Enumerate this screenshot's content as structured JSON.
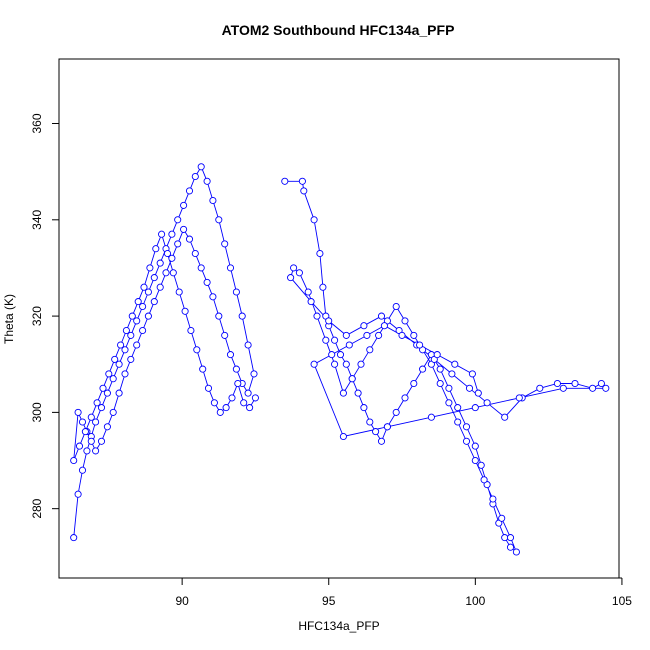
{
  "chart_data": {
    "type": "line",
    "title": "ATOM2 Southbound HFC134a_PFP",
    "xlabel": "HFC134a_PFP",
    "ylabel": "Theta (K)",
    "xlim": [
      85.8,
      104.9
    ],
    "ylim": [
      265.6,
      373.4
    ],
    "x_ticks": [
      90,
      95,
      100,
      105
    ],
    "y_ticks": [
      280,
      300,
      320,
      340,
      360
    ],
    "grid": false,
    "markers": "open-circle",
    "line_color": "#0000ff",
    "series": [
      {
        "x": [
          86.3,
          86.45,
          86.6,
          86.75,
          86.9,
          87.05,
          87.25,
          87.45,
          87.65,
          87.85,
          88.05,
          88.25,
          88.45,
          88.65,
          88.85,
          89.05,
          89.25,
          89.45,
          89.65,
          89.85,
          90.05,
          90.25,
          90.45,
          90.65,
          90.85,
          91.05,
          91.25,
          91.45,
          91.65,
          91.85,
          92.05,
          92.25,
          92.45,
          92.25,
          92.05,
          91.85,
          91.65,
          91.45,
          91.25,
          91.05,
          90.85,
          90.65,
          90.45,
          90.25,
          90.05,
          89.85,
          89.65,
          89.45,
          89.25,
          89.05,
          88.85,
          88.65,
          88.45,
          88.25,
          88.05,
          87.85,
          87.65,
          87.45,
          87.25,
          87.05,
          86.9,
          86.75,
          86.6,
          86.45,
          86.3,
          86.5,
          86.7,
          86.9,
          87.1,
          87.3,
          87.5,
          87.7,
          87.9,
          88.1,
          88.3,
          88.5,
          88.7,
          88.9,
          89.1,
          89.3,
          89.5,
          89.7,
          89.9,
          90.1,
          90.3,
          90.5,
          90.7,
          90.9,
          91.1,
          91.3,
          91.5,
          91.7,
          91.9,
          92.1,
          92.3,
          92.5
        ],
        "y": [
          274,
          283,
          288,
          292,
          295,
          298,
          301,
          304,
          307,
          310,
          313,
          316,
          319,
          322,
          325,
          328,
          331,
          334,
          337,
          340,
          343,
          346,
          349,
          351,
          348,
          344,
          340,
          335,
          330,
          325,
          320,
          314,
          308,
          304,
          306,
          309,
          312,
          316,
          320,
          324,
          327,
          330,
          333,
          336,
          338,
          335,
          332,
          329,
          326,
          323,
          320,
          317,
          314,
          311,
          308,
          304,
          300,
          297,
          294,
          292,
          294,
          296,
          298,
          300,
          290,
          293,
          296,
          299,
          302,
          305,
          308,
          311,
          314,
          317,
          320,
          323,
          326,
          330,
          334,
          337,
          333,
          329,
          325,
          321,
          317,
          313,
          309,
          305,
          302,
          300,
          301,
          303,
          306,
          302,
          301,
          303
        ]
      },
      {
        "x": [
          93.5,
          94.1,
          94.15,
          94.5,
          94.7,
          94.8,
          94.9,
          95.0,
          95.2,
          95.4,
          95.6,
          95.8,
          96.0,
          96.2,
          96.4,
          96.6,
          96.8,
          97.0,
          97.3,
          97.6,
          97.9,
          98.2,
          98.5,
          98.8,
          99.1,
          99.4,
          99.7,
          100.0,
          100.2,
          100.4,
          100.6,
          100.8,
          101.0,
          101.2,
          101.4,
          101.2,
          100.9,
          100.6,
          100.3,
          100.0,
          99.7,
          99.4,
          99.1,
          98.8,
          98.5,
          98.2,
          97.9,
          97.6,
          97.3,
          97.0,
          96.7,
          96.4,
          96.1,
          95.8,
          95.5,
          95.2,
          94.9,
          94.6,
          94.3,
          94.0,
          93.8,
          93.7,
          94.4,
          95.0,
          95.6,
          96.2,
          96.8,
          97.4,
          98.0,
          98.6,
          99.2,
          99.8,
          100.4,
          101.0,
          101.6,
          102.2,
          102.8,
          103.4,
          104.0,
          104.3,
          104.45,
          103.0,
          101.5,
          100.0,
          98.5,
          97.0,
          95.5,
          94.5,
          95.1,
          95.7,
          96.3,
          96.9,
          97.5,
          98.1,
          98.7,
          99.3,
          99.9,
          100.1
        ],
        "y": [
          348,
          348,
          346,
          340,
          333,
          326,
          320,
          318,
          315,
          312,
          310,
          307,
          304,
          301,
          298,
          296,
          294,
          297,
          300,
          303,
          306,
          309,
          312,
          309,
          305,
          301,
          297,
          293,
          289,
          285,
          281,
          277,
          274,
          272,
          271,
          274,
          278,
          282,
          286,
          290,
          294,
          298,
          302,
          306,
          310,
          313,
          316,
          319,
          322,
          319,
          316,
          313,
          310,
          307,
          304,
          310,
          315,
          320,
          325,
          329,
          330,
          328,
          323,
          319,
          316,
          318,
          320,
          317,
          314,
          311,
          308,
          305,
          302,
          299,
          303,
          305,
          306,
          306,
          305,
          306,
          305,
          305,
          303,
          301,
          299,
          297,
          295,
          310,
          312,
          314,
          316,
          318,
          316,
          314,
          312,
          310,
          308,
          304
        ]
      }
    ]
  }
}
